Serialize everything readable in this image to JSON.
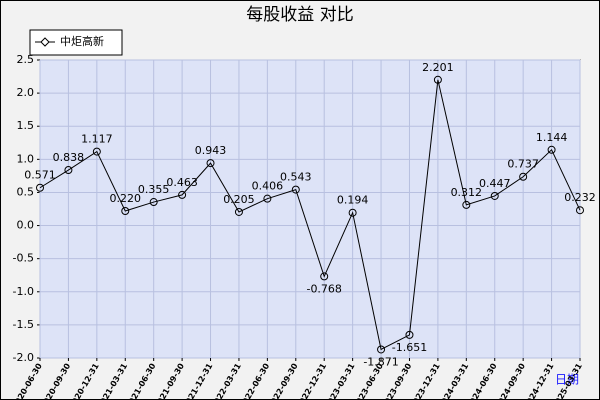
{
  "chart_data": {
    "type": "line",
    "title": "每股收益 对比",
    "x_label": "日期",
    "categories": [
      "2020-06-30",
      "2020-09-30",
      "2020-12-31",
      "2021-03-31",
      "2021-06-30",
      "2021-09-30",
      "2021-12-31",
      "2022-03-31",
      "2022-06-30",
      "2022-09-30",
      "2022-12-31",
      "2023-03-31",
      "2023-06-30",
      "2023-09-30",
      "2023-12-31",
      "2024-03-31",
      "2024-06-30",
      "2024-09-30",
      "2024-12-31",
      "2025-03-31"
    ],
    "series": [
      {
        "name": "中炬高新",
        "color": "#000000",
        "values": [
          0.571,
          0.838,
          1.117,
          0.22,
          0.355,
          0.463,
          0.943,
          0.205,
          0.406,
          0.543,
          -0.768,
          0.194,
          -1.871,
          -1.651,
          2.201,
          0.312,
          0.447,
          0.737,
          1.144,
          0.232
        ],
        "value_labels": [
          "0.571",
          "0.838",
          "1.117",
          "0.220",
          "0.355",
          "0.463",
          "0.943",
          "0.205",
          "0.406",
          "0.543",
          "-0.768",
          "0.194",
          "-1.871",
          "-1.651",
          "2.201",
          "0.312",
          "0.447",
          "0.737",
          "1.144",
          "0.232"
        ]
      }
    ],
    "ylim": [
      -2,
      2.5
    ],
    "yticks": [
      {
        "value": -2,
        "label": "-2.0"
      },
      -1.5,
      {
        "value": -1,
        "label": "-1.0"
      },
      -0.5,
      {
        "value": 0,
        "label": "0.0"
      },
      0.5,
      {
        "value": 1,
        "label": "1.0"
      },
      1.5,
      {
        "value": 2,
        "label": "2.0"
      },
      2.5
    ],
    "grid": true,
    "legend": "top-left"
  }
}
